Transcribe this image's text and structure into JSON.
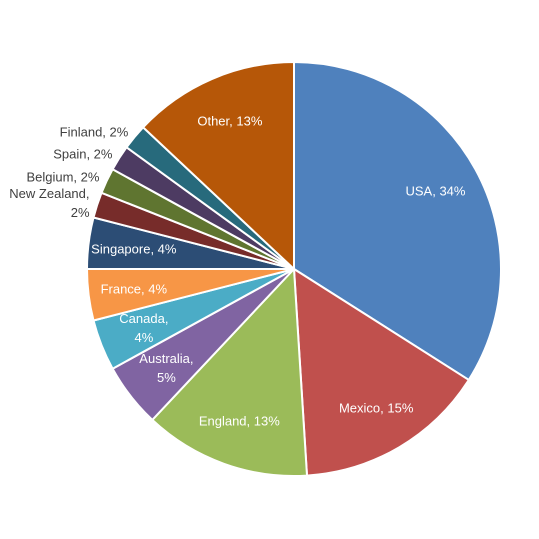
{
  "chart_data": {
    "type": "pie",
    "values": [
      34,
      15,
      13,
      5,
      4,
      4,
      4,
      2,
      2,
      2,
      2,
      13
    ],
    "value_labels": [
      "USA, 34%",
      "Mexico, 15%",
      "England, 13%",
      "Australia,\n5%",
      "Canada,\n4%",
      "France, 4%",
      "Singapore, 4%",
      "New Zealand,\n2%",
      "Belgium, 2%",
      "Spain, 2%",
      "Finland, 2%",
      "Other, 13%"
    ],
    "colors": [
      "#4f81bd",
      "#c0504d",
      "#9bbb59",
      "#8064a2",
      "#4bacc6",
      "#f79646",
      "#2c4d75",
      "#772c2a",
      "#5f7530",
      "#4d3b62",
      "#276a7c",
      "#b65708"
    ]
  }
}
